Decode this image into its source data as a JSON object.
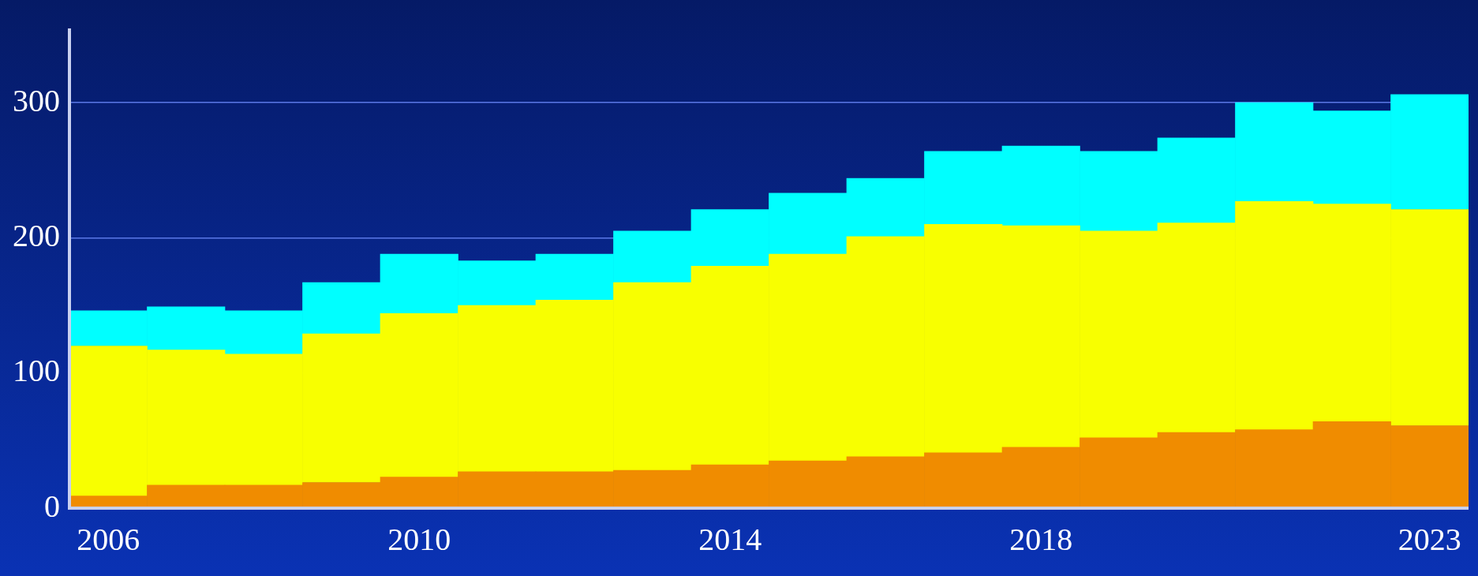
{
  "chart_data": {
    "type": "bar",
    "stacked": true,
    "categories": [
      "2006",
      null,
      null,
      null,
      "2010",
      null,
      null,
      null,
      "2014",
      null,
      null,
      null,
      "2018",
      null,
      null,
      null,
      null,
      "2023"
    ],
    "series": [
      {
        "color": "#f08c00",
        "values": [
          9,
          17,
          17,
          19,
          23,
          27,
          27,
          28,
          32,
          35,
          38,
          41,
          45,
          52,
          56,
          58,
          64,
          61
        ]
      },
      {
        "color": "#f8ff00",
        "values": [
          111,
          100,
          97,
          110,
          121,
          123,
          127,
          139,
          147,
          153,
          163,
          169,
          164,
          153,
          155,
          169,
          161,
          160
        ]
      },
      {
        "color": "#00ffff",
        "values": [
          26,
          32,
          32,
          38,
          44,
          33,
          34,
          38,
          42,
          45,
          43,
          54,
          59,
          59,
          63,
          73,
          69,
          85
        ]
      }
    ],
    "ylim": [
      0,
      355
    ],
    "yticks": [
      0,
      100,
      200,
      300
    ],
    "grid": "y",
    "legend": false
  }
}
